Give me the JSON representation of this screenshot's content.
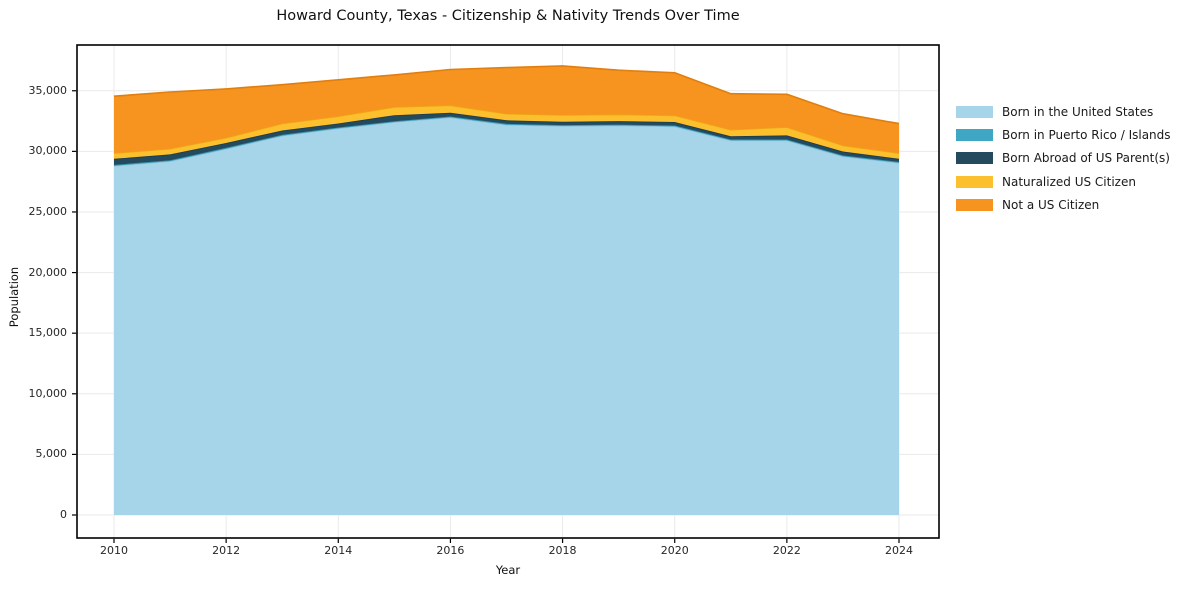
{
  "title": "Howard County, Texas - Citizenship & Nativity Trends Over Time",
  "chart_data": {
    "type": "area",
    "stacked": true,
    "title": "Howard County, Texas - Citizenship & Nativity Trends Over Time",
    "xlabel": "Year",
    "ylabel": "Population",
    "grid": true,
    "legend_position": "right-outside",
    "x": [
      2010,
      2011,
      2012,
      2013,
      2014,
      2015,
      2016,
      2017,
      2018,
      2019,
      2020,
      2021,
      2022,
      2023,
      2024
    ],
    "series": [
      {
        "name": "Born in the United States",
        "color": "#A6D4E8",
        "edge": "#8CC3DC",
        "values": [
          28810,
          29200,
          30220,
          31300,
          31900,
          32420,
          32810,
          32200,
          32100,
          32140,
          32060,
          30910,
          30910,
          29600,
          29060
        ]
      },
      {
        "name": "Born in Puerto Rico / Islands",
        "color": "#3FA6C3",
        "edge": "#3594B0",
        "values": [
          70,
          70,
          70,
          70,
          70,
          70,
          70,
          70,
          70,
          70,
          70,
          70,
          70,
          70,
          70
        ]
      },
      {
        "name": "Born Abroad of US Parent(s)",
        "color": "#234A5D",
        "edge": "#1B3C4C",
        "values": [
          510,
          480,
          400,
          350,
          330,
          490,
          310,
          290,
          280,
          290,
          290,
          260,
          340,
          320,
          260
        ]
      },
      {
        "name": "Naturalized US Citizen",
        "color": "#FCC02E",
        "edge": "#ECA715",
        "values": [
          470,
          470,
          440,
          580,
          600,
          680,
          610,
          550,
          550,
          550,
          550,
          550,
          680,
          500,
          470
        ]
      },
      {
        "name": "Not a US Citizen",
        "color": "#F7941F",
        "edge": "#E07F10",
        "values": [
          4690,
          4680,
          4020,
          3200,
          3000,
          2650,
          2950,
          3800,
          4050,
          3650,
          3510,
          2970,
          2710,
          2620,
          2430
        ]
      }
    ],
    "x_ticks": [
      2010,
      2012,
      2014,
      2016,
      2018,
      2020,
      2022,
      2024
    ],
    "x_tick_labels": [
      "2010",
      "2012",
      "2014",
      "2016",
      "2018",
      "2020",
      "2022",
      "2024"
    ],
    "y_ticks": [
      0,
      5000,
      10000,
      15000,
      20000,
      25000,
      30000,
      35000
    ],
    "y_tick_labels": [
      "0",
      "5,000",
      "10,000",
      "15,000",
      "20,000",
      "25,000",
      "30,000",
      "35,000"
    ],
    "xlim": [
      2009.34,
      2024.71
    ],
    "ylim": [
      -1900,
      38800
    ],
    "grid_color": "#EAEAEA",
    "spine_color": "#000000"
  }
}
